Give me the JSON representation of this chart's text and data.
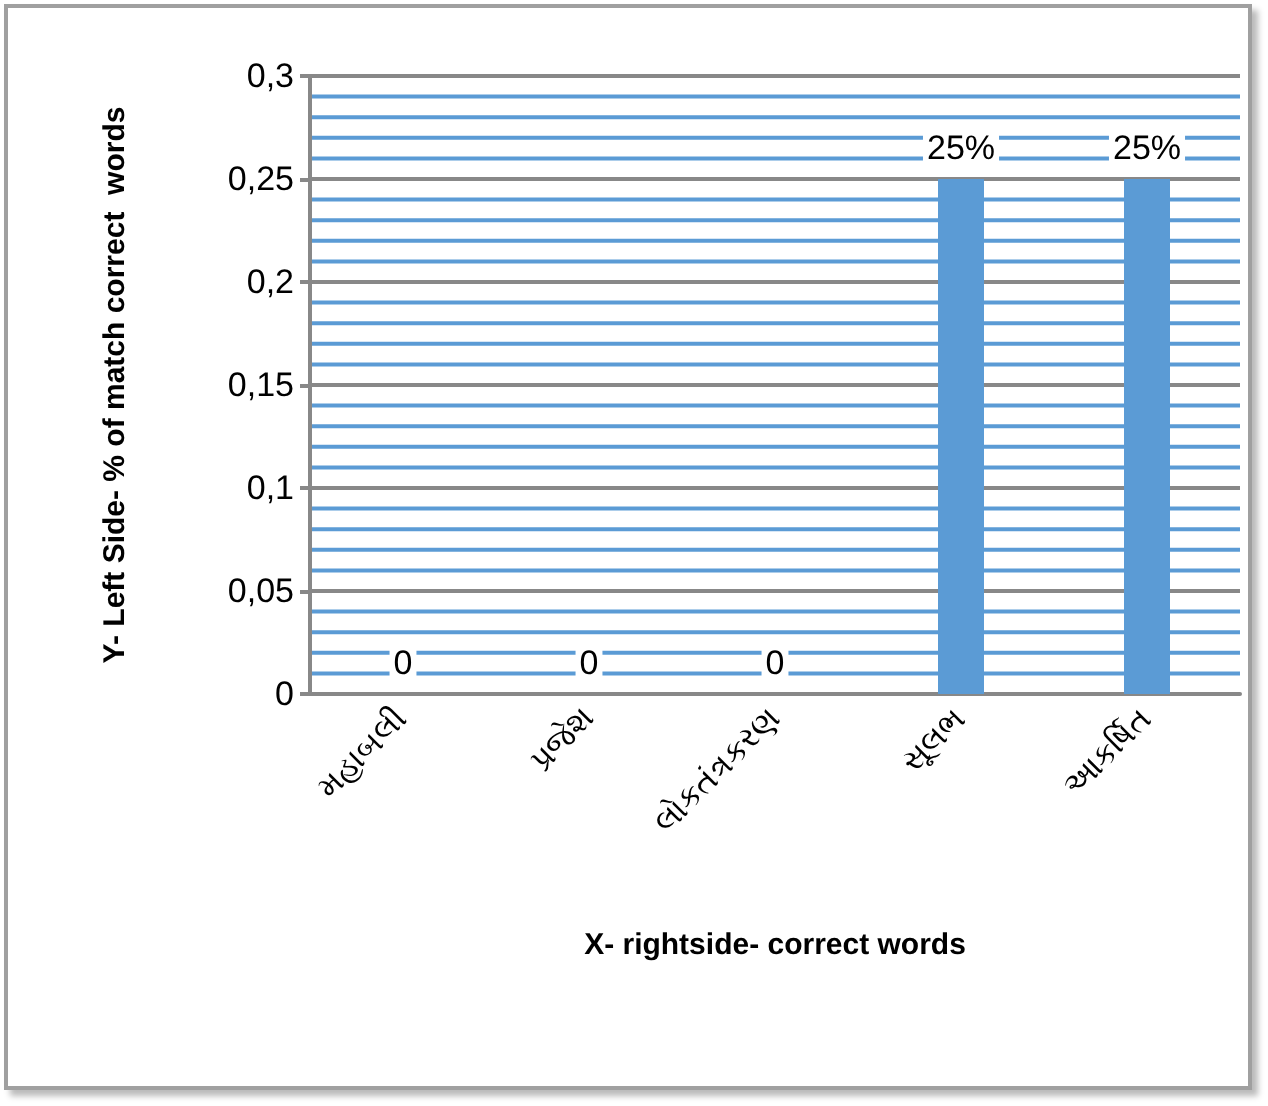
{
  "chart_data": {
    "type": "bar",
    "xlabel": "X- rightside- correct words",
    "ylabel": "Y- Left Side- % of match correct  words",
    "categories": [
      "મહાબલી",
      "પ્રજેશ",
      "લોકતંત્રકરણ",
      "સૂલભ",
      "આકર્ષિત"
    ],
    "values": [
      0,
      0,
      0,
      0.25,
      0.25
    ],
    "color": "#5b9bd5",
    "value_labels": [
      "0",
      "0",
      "0",
      "25%",
      "25%"
    ],
    "ylim": [
      0,
      0.3
    ],
    "yticks": [
      {
        "value": 0,
        "label": "0"
      },
      {
        "value": 0.01,
        "label": null
      },
      {
        "value": 0.02,
        "label": null
      },
      {
        "value": 0.03,
        "label": null
      },
      {
        "value": 0.04,
        "label": null
      },
      {
        "value": 0.05,
        "label": "0,05"
      },
      {
        "value": 0.06,
        "label": null
      },
      {
        "value": 0.07,
        "label": null
      },
      {
        "value": 0.08,
        "label": null
      },
      {
        "value": 0.09,
        "label": null
      },
      {
        "value": 0.1,
        "label": "0,1"
      },
      {
        "value": 0.11,
        "label": null
      },
      {
        "value": 0.12,
        "label": null
      },
      {
        "value": 0.13,
        "label": null
      },
      {
        "value": 0.14,
        "label": null
      },
      {
        "value": 0.15,
        "label": "0,15"
      },
      {
        "value": 0.16,
        "label": null
      },
      {
        "value": 0.17,
        "label": null
      },
      {
        "value": 0.18,
        "label": null
      },
      {
        "value": 0.19,
        "label": null
      },
      {
        "value": 0.2,
        "label": "0,2"
      },
      {
        "value": 0.21,
        "label": null
      },
      {
        "value": 0.22,
        "label": null
      },
      {
        "value": 0.23,
        "label": null
      },
      {
        "value": 0.24,
        "label": null
      },
      {
        "value": 0.25,
        "label": "0,25"
      },
      {
        "value": 0.26,
        "label": null
      },
      {
        "value": 0.27,
        "label": null
      },
      {
        "value": 0.28,
        "label": null
      },
      {
        "value": 0.29,
        "label": null
      },
      {
        "value": 0.3,
        "label": "0,3"
      }
    ],
    "grid": true
  }
}
